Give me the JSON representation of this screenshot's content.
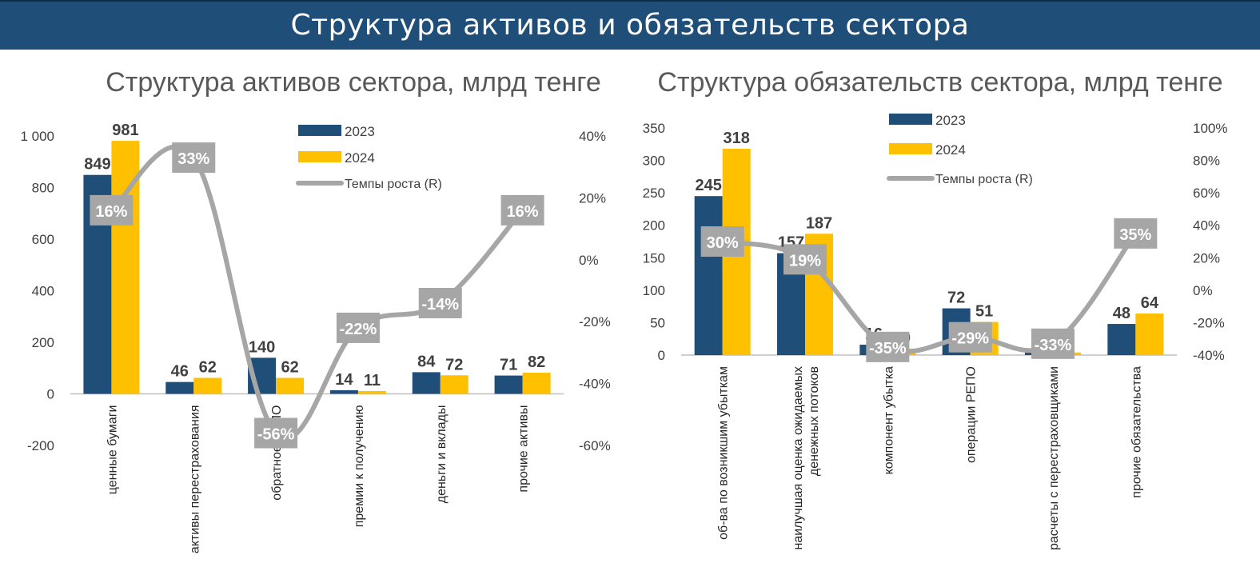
{
  "banner": {
    "title": "Структура активов и обязательств сектора"
  },
  "colors": {
    "c2023": "#1f4e79",
    "c2024": "#ffc000",
    "growth": "#a6a6a6",
    "banner": "#1f4e79"
  },
  "chart_data": [
    {
      "type": "bar",
      "title": "Структура активов сектора, млрд тенге",
      "categories": [
        "ценные бумаги",
        "активы перестрахования",
        "обратное РЕПО",
        "премии к получению",
        "деньги и вклады",
        "прочие активы"
      ],
      "series": [
        {
          "name": "2023",
          "values": [
            849,
            46,
            140,
            14,
            84,
            71
          ]
        },
        {
          "name": "2024",
          "values": [
            981,
            62,
            62,
            11,
            72,
            82
          ]
        },
        {
          "name": "Темпы роста (R)",
          "type": "line",
          "axis": "right",
          "values": [
            16,
            33,
            -56,
            -22,
            -14,
            16
          ],
          "labels": [
            "16%",
            "33%",
            "-56%",
            "-22%",
            "-14%",
            "16%"
          ]
        }
      ],
      "ylim": [
        -200,
        1000
      ],
      "yticks": [
        "-200",
        "0",
        "200",
        "400",
        "600",
        "800",
        "1 000"
      ],
      "y2lim": [
        -60,
        40
      ],
      "y2ticks": [
        "-60%",
        "-40%",
        "-20%",
        "0%",
        "20%",
        "40%"
      ],
      "legend": "top-right"
    },
    {
      "type": "bar",
      "title": "Структура обязательств сектора, млрд тенге",
      "categories": [
        "об-ва по возникшим убыткам",
        "наилучшая оценка ожидаемых денежных потоков",
        "компонент убытка",
        "операции РЕПО",
        "расчеты с перестраховщиками",
        "прочие обязательства"
      ],
      "series": [
        {
          "name": "2023",
          "values": [
            245,
            157,
            16,
            72,
            6,
            48
          ]
        },
        {
          "name": "2024",
          "values": [
            318,
            187,
            10,
            51,
            4,
            64
          ]
        },
        {
          "name": "Темпы роста (R)",
          "type": "line",
          "axis": "right",
          "values": [
            30,
            19,
            -35,
            -29,
            -33,
            35
          ],
          "labels": [
            "30%",
            "19%",
            "-35%",
            "-29%",
            "-33%",
            "35%"
          ]
        }
      ],
      "ylim": [
        0,
        350
      ],
      "yticks": [
        "0",
        "50",
        "100",
        "150",
        "200",
        "250",
        "300",
        "350"
      ],
      "y2lim": [
        -40,
        100
      ],
      "y2ticks": [
        "-40%",
        "-20%",
        "0%",
        "20%",
        "40%",
        "60%",
        "80%",
        "100%"
      ],
      "legend": "top-right"
    }
  ]
}
